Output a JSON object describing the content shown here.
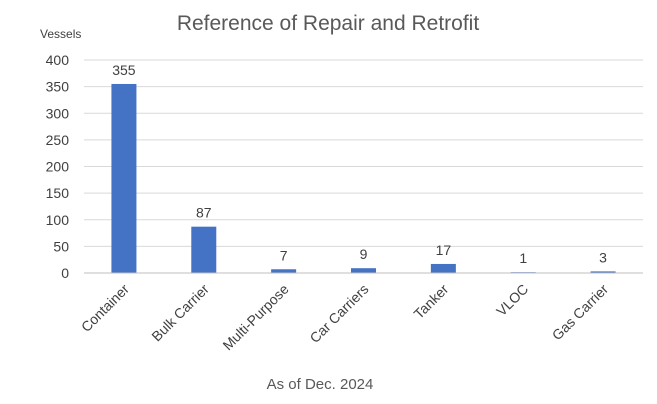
{
  "chart_data": {
    "type": "bar",
    "title": "Reference of Repair and Retrofit",
    "ylabel": "Vessels",
    "xlabel": "",
    "categories": [
      "Container",
      "Bulk Carrier",
      "Multi-Purpose",
      "Car Carriers",
      "Tanker",
      "VLOC",
      "Gas Carrier"
    ],
    "values": [
      355,
      87,
      7,
      9,
      17,
      1,
      3
    ],
    "ylim": [
      0,
      400
    ],
    "yticks": [
      0,
      50,
      100,
      150,
      200,
      250,
      300,
      350,
      400
    ],
    "grid": true,
    "legend": "none",
    "bar_color": "#4472c4",
    "footnote": "As of Dec. 2024"
  }
}
